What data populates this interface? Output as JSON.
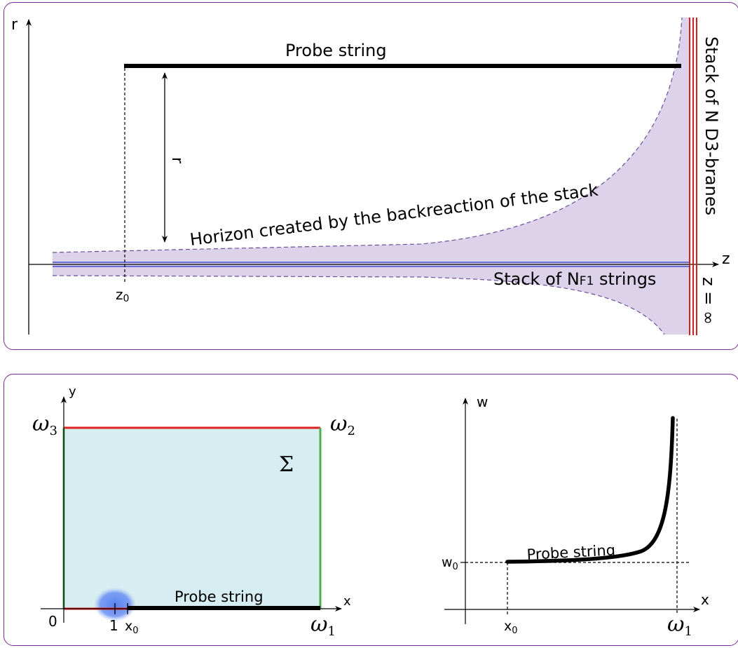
{
  "top": {
    "axis_r": "r",
    "axis_z": "z",
    "probe_string": "Probe string",
    "r_label": "r",
    "horizon": "Horizon created by the backreaction of the stack",
    "stack_f1_prefix": "Stack of N",
    "stack_f1_sub": "F1",
    "stack_f1_suffix": " strings",
    "z0_main": "z",
    "z0_sub": "0",
    "d3_stack": "Stack of N D3-branes",
    "z_inf": "z = ∞",
    "colors": {
      "horizon_fill": "#dcd2ea",
      "horizon_dash": "#6b4f9a",
      "f1_lines": "#2233cc",
      "d3_lines": "#d02020"
    }
  },
  "bottom_left": {
    "axis_y": "y",
    "axis_x": "x",
    "omega3": "ω",
    "omega3_sub": "3",
    "omega2": "ω",
    "omega2_sub": "2",
    "omega1": "ω",
    "omega1_sub": "1",
    "sigma": "Σ",
    "origin": "0",
    "one": "1",
    "x0_main": "x",
    "x0_sub": "0",
    "probe_string": "Probe string",
    "colors": {
      "region_fill": "#d6eef2",
      "red_edge": "#e02020",
      "green_edge": "#4caf50",
      "blob": "#5a82f0"
    }
  },
  "bottom_right": {
    "axis_w": "w",
    "axis_x": "x",
    "w0_main": "w",
    "w0_sub": "0",
    "x0_main": "x",
    "x0_sub": "0",
    "omega1": "ω",
    "omega1_sub": "1",
    "probe_string": "Probe string"
  }
}
